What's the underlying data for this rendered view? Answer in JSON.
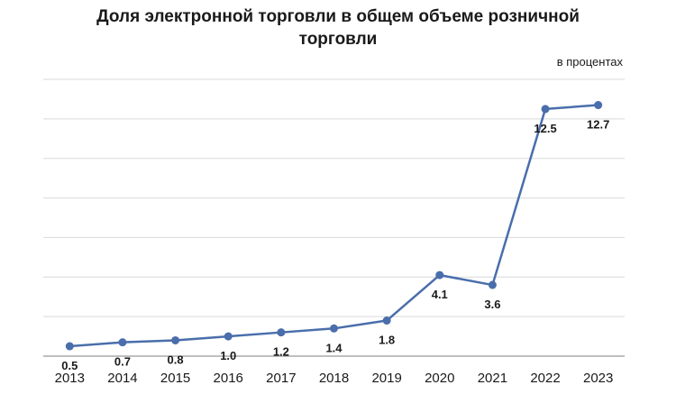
{
  "chart_data": {
    "type": "line",
    "title_lines": [
      "Доля электронной торговли в общем объеме розничной",
      "торговли"
    ],
    "unit_label": "в процентах",
    "categories": [
      "2013",
      "2014",
      "2015",
      "2016",
      "2017",
      "2018",
      "2019",
      "2020",
      "2021",
      "2022",
      "2023"
    ],
    "series": [
      {
        "values": [
          0.5,
          0.7,
          0.8,
          1.0,
          1.2,
          1.4,
          1.8,
          4.1,
          3.6,
          12.5,
          12.7
        ],
        "labels": [
          "0.5",
          "0.7",
          "0.8",
          "1.0",
          "1.2",
          "1.4",
          "1.8",
          "4.1",
          "3.6",
          "12.5",
          "12.7"
        ],
        "color": "#4a6eab"
      }
    ],
    "ylim": [
      0,
      14
    ],
    "grid": true,
    "legend": "none",
    "grid_color": "#d9d9d9",
    "axis_color": "#7f7f7f"
  }
}
